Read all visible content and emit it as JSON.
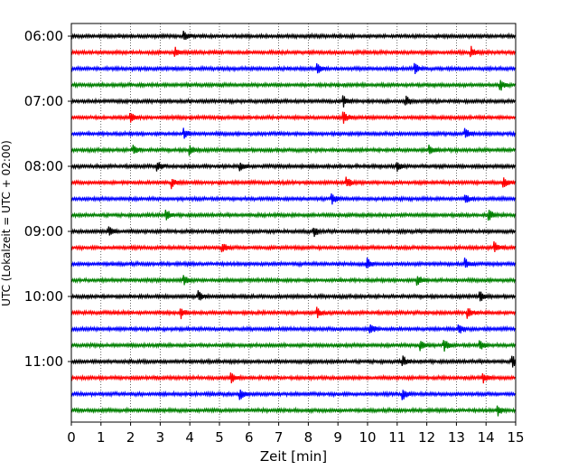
{
  "chart_data": {
    "type": "line",
    "title": "",
    "xlabel": "Zeit  [min]",
    "ylabel": "UTC (Lokalzeit = UTC + 02:00)",
    "xlim": [
      0,
      15
    ],
    "x_ticks": [
      0,
      1,
      2,
      3,
      4,
      5,
      6,
      7,
      8,
      9,
      10,
      11,
      12,
      13,
      14,
      15
    ],
    "x_tick_labels": [
      "0",
      "1",
      "2",
      "3",
      "4",
      "5",
      "6",
      "7",
      "8",
      "9",
      "10",
      "11",
      "12",
      "13",
      "14",
      "15"
    ],
    "y_ticks": [
      "06:00",
      "07:00",
      "08:00",
      "09:00",
      "10:00",
      "11:00"
    ],
    "grid": "vertical dotted lines at each minute",
    "trace_interval_minutes": 15,
    "trace_colors_cycle": [
      "#000000",
      "#ff0000",
      "#0000ff",
      "#008000"
    ],
    "traces": [
      {
        "start": "06:00",
        "color": "#000000",
        "events": [
          3.8
        ]
      },
      {
        "start": "06:15",
        "color": "#ff0000",
        "events": [
          3.5,
          13.5
        ]
      },
      {
        "start": "06:30",
        "color": "#0000ff",
        "events": [
          8.3,
          11.6
        ]
      },
      {
        "start": "06:45",
        "color": "#008000",
        "events": [
          14.5
        ]
      },
      {
        "start": "07:00",
        "color": "#000000",
        "events": [
          9.2,
          11.3
        ]
      },
      {
        "start": "07:15",
        "color": "#ff0000",
        "events": [
          2.0,
          9.2
        ]
      },
      {
        "start": "07:30",
        "color": "#0000ff",
        "events": [
          3.8,
          13.3
        ]
      },
      {
        "start": "07:45",
        "color": "#008000",
        "events": [
          2.1,
          4.0,
          12.1
        ]
      },
      {
        "start": "08:00",
        "color": "#000000",
        "events": [
          2.9,
          5.7,
          11.0
        ]
      },
      {
        "start": "08:15",
        "color": "#ff0000",
        "events": [
          3.4,
          9.3,
          14.6
        ]
      },
      {
        "start": "08:30",
        "color": "#0000ff",
        "events": [
          8.8,
          13.3
        ]
      },
      {
        "start": "08:45",
        "color": "#008000",
        "events": [
          3.2,
          14.1
        ]
      },
      {
        "start": "09:00",
        "color": "#000000",
        "events": [
          1.3,
          8.2
        ]
      },
      {
        "start": "09:15",
        "color": "#ff0000",
        "events": [
          5.1,
          14.3
        ]
      },
      {
        "start": "09:30",
        "color": "#0000ff",
        "events": [
          10.0,
          13.3
        ]
      },
      {
        "start": "09:45",
        "color": "#008000",
        "events": [
          3.8,
          11.7
        ]
      },
      {
        "start": "10:00",
        "color": "#000000",
        "events": [
          4.3,
          13.8
        ]
      },
      {
        "start": "10:15",
        "color": "#ff0000",
        "events": [
          3.7,
          8.3,
          13.4
        ]
      },
      {
        "start": "10:30",
        "color": "#0000ff",
        "events": [
          10.1,
          13.1
        ]
      },
      {
        "start": "10:45",
        "color": "#008000",
        "events": [
          11.8,
          12.6,
          13.8
        ]
      },
      {
        "start": "11:00",
        "color": "#000000",
        "events": [
          11.2,
          14.9
        ]
      },
      {
        "start": "11:15",
        "color": "#ff0000",
        "events": [
          5.4,
          13.9
        ]
      },
      {
        "start": "11:30",
        "color": "#0000ff",
        "events": [
          5.7,
          11.2
        ]
      },
      {
        "start": "11:45",
        "color": "#008000",
        "events": [
          14.4
        ]
      }
    ]
  }
}
